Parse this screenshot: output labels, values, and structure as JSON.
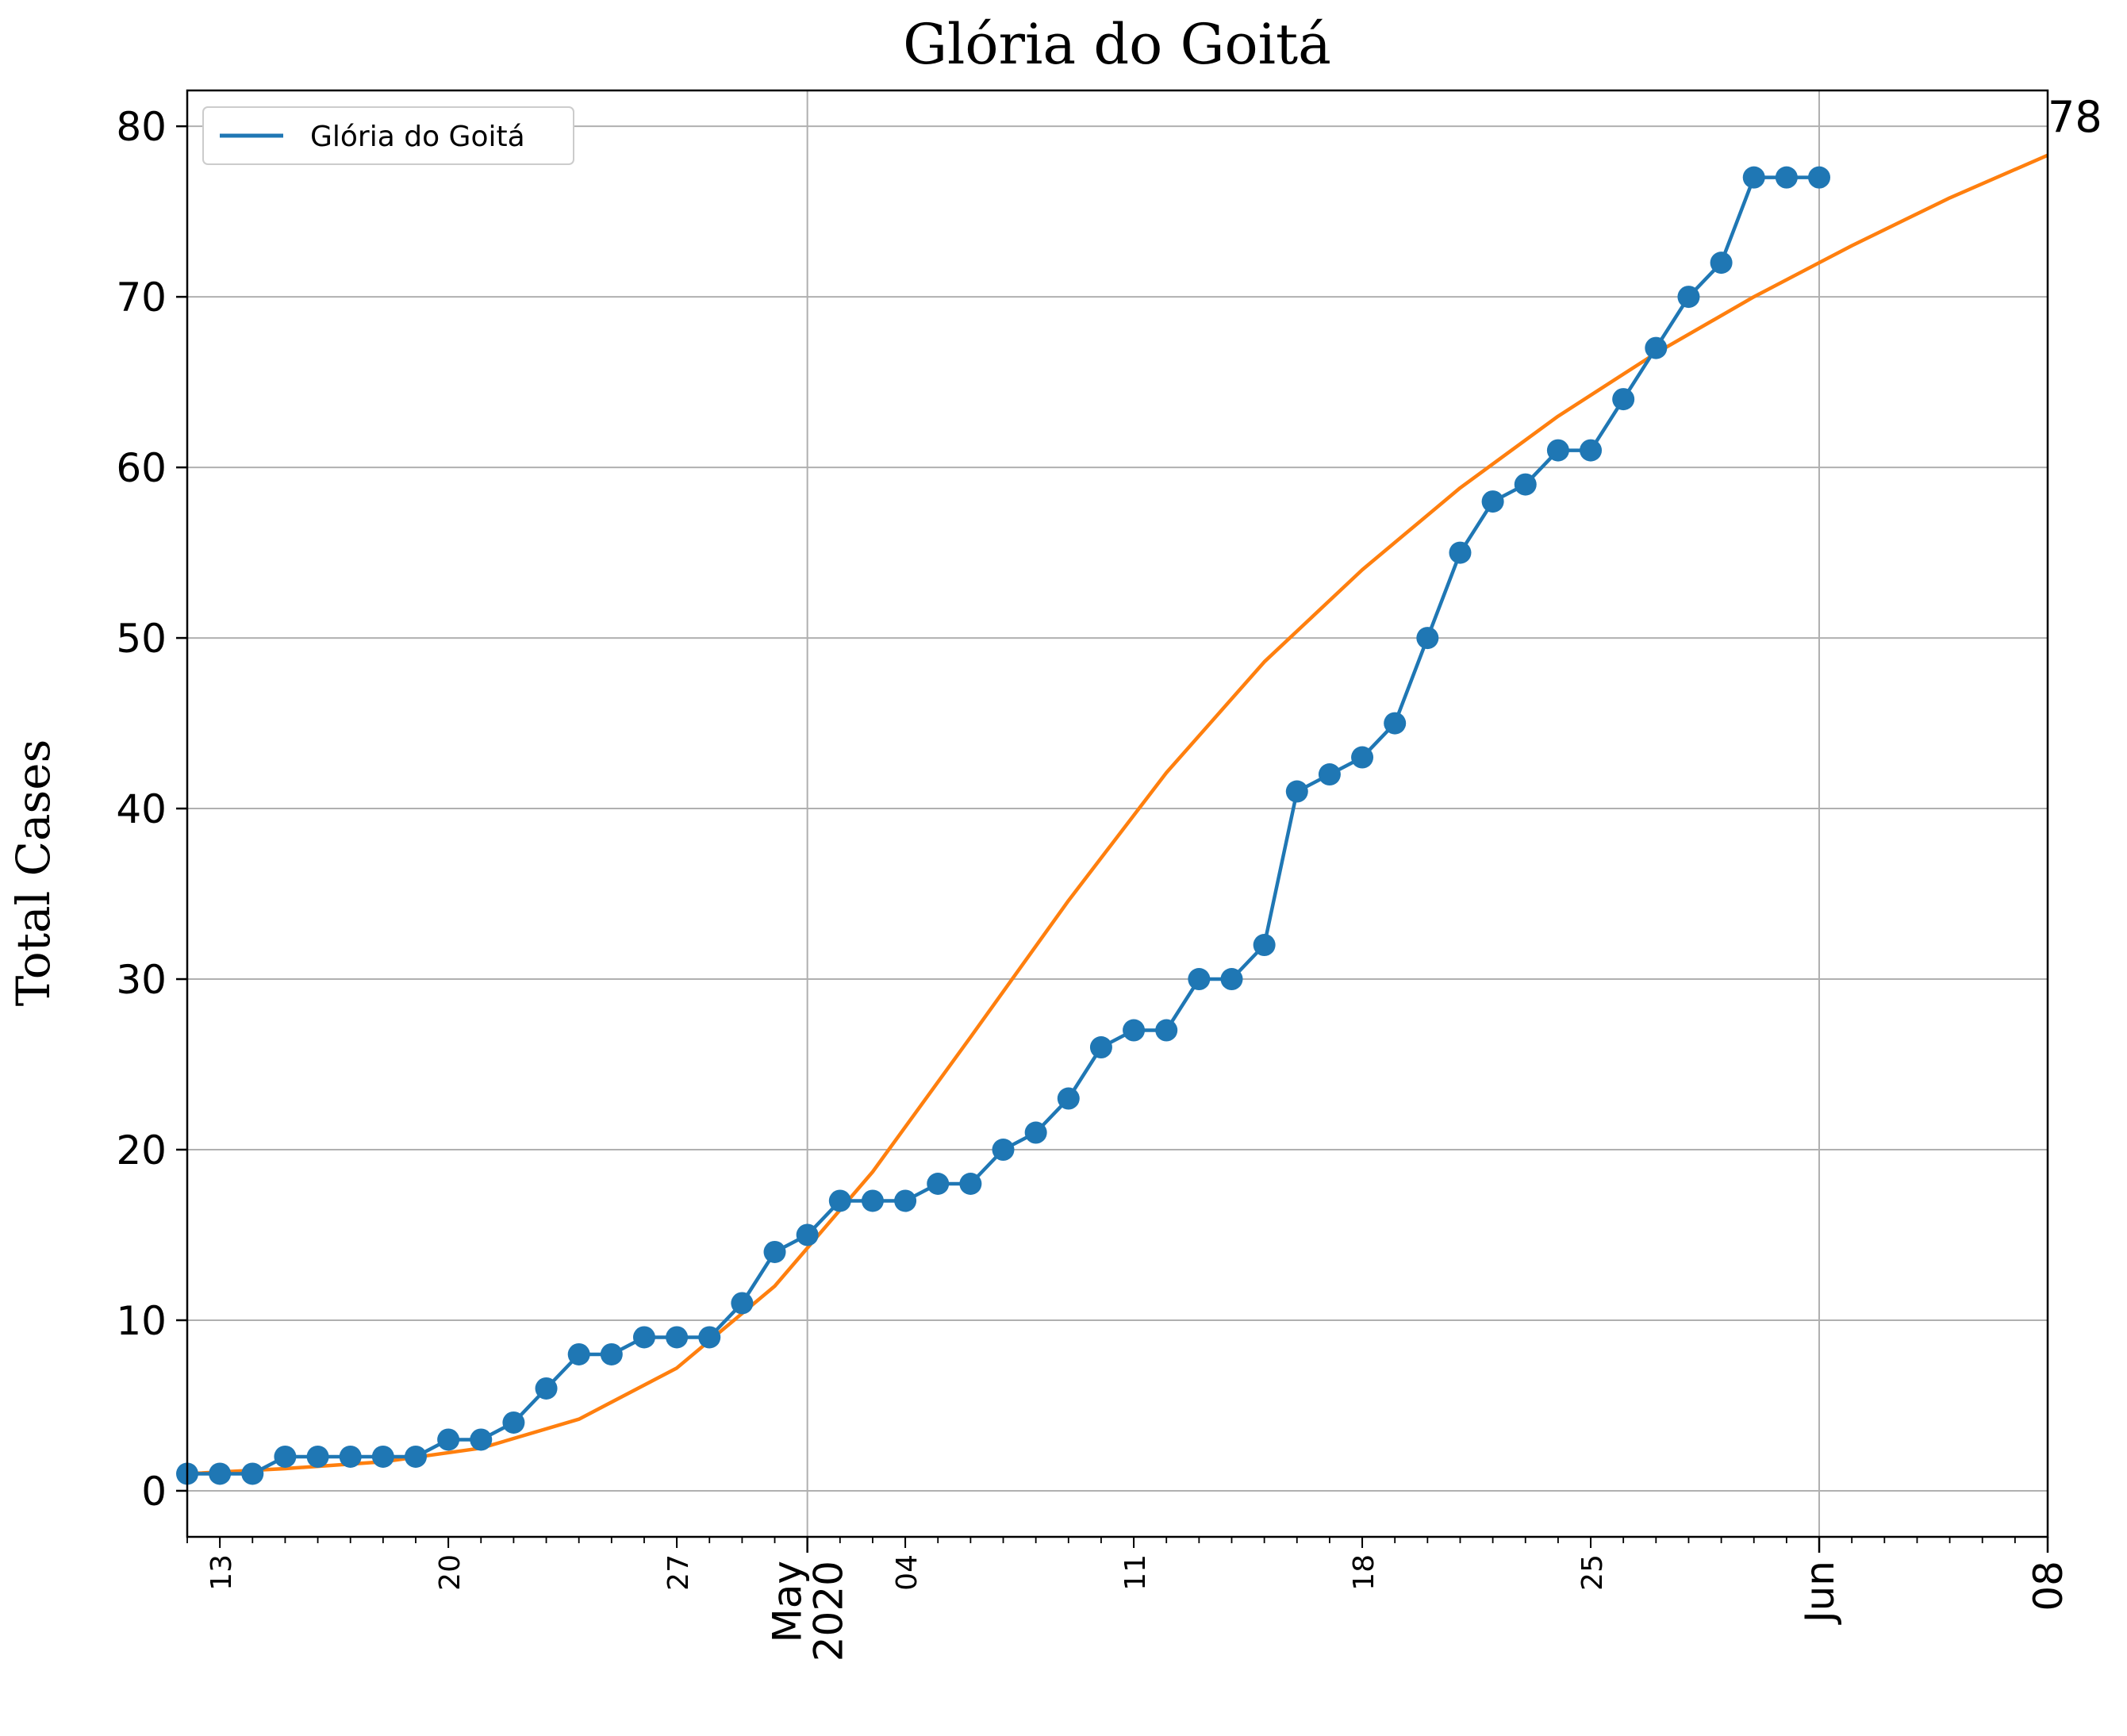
{
  "chart_data": {
    "type": "line",
    "title": "Glória do Goitá",
    "xlabel": "",
    "ylabel": "Total Cases",
    "ylim": [
      -2.7,
      82.1
    ],
    "xlim": [
      "2020-04-12",
      "2020-06-08"
    ],
    "yticks": [
      "0",
      "10",
      "20",
      "30",
      "40",
      "50",
      "60",
      "70",
      "80"
    ],
    "xticks_minor_labels": [
      "13",
      "20",
      "27",
      "04",
      "11",
      "18",
      "25"
    ],
    "xticks_major_labels": [
      {
        "date": "2020-05-01",
        "label": "May\n2020"
      },
      {
        "date": "2020-06-01",
        "label": "Jun"
      },
      {
        "date": "2020-06-08",
        "label": "08"
      }
    ],
    "grid": true,
    "legend": {
      "placement": "upper left",
      "entries": [
        "Glória do Goitá"
      ]
    },
    "annotation": "78",
    "colors": {
      "observed": "#1f77b4",
      "fit": "#ff7f0e",
      "grid": "#b0b0b0"
    },
    "series": [
      {
        "name": "Glória do Goitá",
        "marker": "circle",
        "x": [
          "2020-04-12",
          "2020-04-13",
          "2020-04-14",
          "2020-04-15",
          "2020-04-16",
          "2020-04-17",
          "2020-04-18",
          "2020-04-19",
          "2020-04-20",
          "2020-04-21",
          "2020-04-22",
          "2020-04-23",
          "2020-04-24",
          "2020-04-25",
          "2020-04-26",
          "2020-04-27",
          "2020-04-28",
          "2020-04-29",
          "2020-04-30",
          "2020-05-01",
          "2020-05-02",
          "2020-05-03",
          "2020-05-04",
          "2020-05-05",
          "2020-05-06",
          "2020-05-07",
          "2020-05-08",
          "2020-05-09",
          "2020-05-10",
          "2020-05-11",
          "2020-05-12",
          "2020-05-13",
          "2020-05-14",
          "2020-05-15",
          "2020-05-16",
          "2020-05-17",
          "2020-05-18",
          "2020-05-19",
          "2020-05-20",
          "2020-05-21",
          "2020-05-22",
          "2020-05-23",
          "2020-05-24",
          "2020-05-25",
          "2020-05-26",
          "2020-05-27",
          "2020-05-28",
          "2020-05-29",
          "2020-05-30",
          "2020-05-31",
          "2020-06-01"
        ],
        "values": [
          1,
          1,
          1,
          2,
          2,
          2,
          2,
          2,
          3,
          3,
          4,
          6,
          8,
          8,
          9,
          9,
          9,
          11,
          14,
          15,
          17,
          17,
          17,
          18,
          18,
          20,
          21,
          23,
          26,
          27,
          27,
          30,
          30,
          32,
          41,
          42,
          43,
          45,
          50,
          55,
          58,
          59,
          61,
          61,
          64,
          67,
          70,
          72,
          77,
          77,
          77
        ]
      },
      {
        "name": "",
        "marker": "none",
        "x": [
          "2020-04-12",
          "2020-04-15",
          "2020-04-18",
          "2020-04-21",
          "2020-04-24",
          "2020-04-27",
          "2020-04-30",
          "2020-05-03",
          "2020-05-06",
          "2020-05-09",
          "2020-05-12",
          "2020-05-15",
          "2020-05-18",
          "2020-05-21",
          "2020-05-24",
          "2020-05-27",
          "2020-05-30",
          "2020-06-02",
          "2020-06-05",
          "2020-06-08"
        ],
        "values": [
          1.0,
          1.3,
          1.7,
          2.5,
          4.2,
          7.2,
          12.0,
          18.7,
          26.6,
          34.6,
          42.1,
          48.6,
          54.0,
          58.8,
          63.0,
          66.7,
          70.0,
          73.0,
          75.8,
          78.3
        ]
      }
    ]
  }
}
